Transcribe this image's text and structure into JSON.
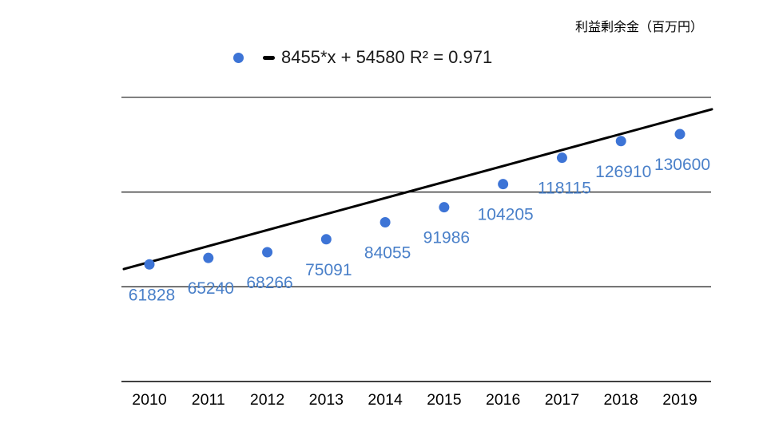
{
  "title": "利益剰余金（百万円）",
  "legend": {
    "equation": "8455*x + 54580 R² = 0.971"
  },
  "chart_data": {
    "type": "scatter",
    "title": "利益剰余金（百万円）",
    "x": [
      2010,
      2011,
      2012,
      2013,
      2014,
      2015,
      2016,
      2017,
      2018,
      2019
    ],
    "series": [
      {
        "name": "利益剰余金",
        "values": [
          61828,
          65240,
          68266,
          75091,
          84055,
          91986,
          104205,
          118115,
          126910,
          130600
        ]
      }
    ],
    "data_labels_visible": true,
    "trendline": {
      "type": "linear",
      "slope": 8455,
      "intercept": 54580,
      "r2": 0.971,
      "equation_label": "8455*x + 54580 R² = 0.971",
      "x_index_start": 1
    },
    "xlabel": "",
    "ylabel": "",
    "ylim": [
      0,
      150000
    ],
    "gridline_step": 50000,
    "grid": true,
    "y_tick_labels_visible": false,
    "legend_position": "top",
    "colors": {
      "point": "#3d74d6",
      "label": "#4a80c9",
      "trendline": "#000000",
      "gridline": "#000000",
      "axis_text": "#000000"
    }
  }
}
